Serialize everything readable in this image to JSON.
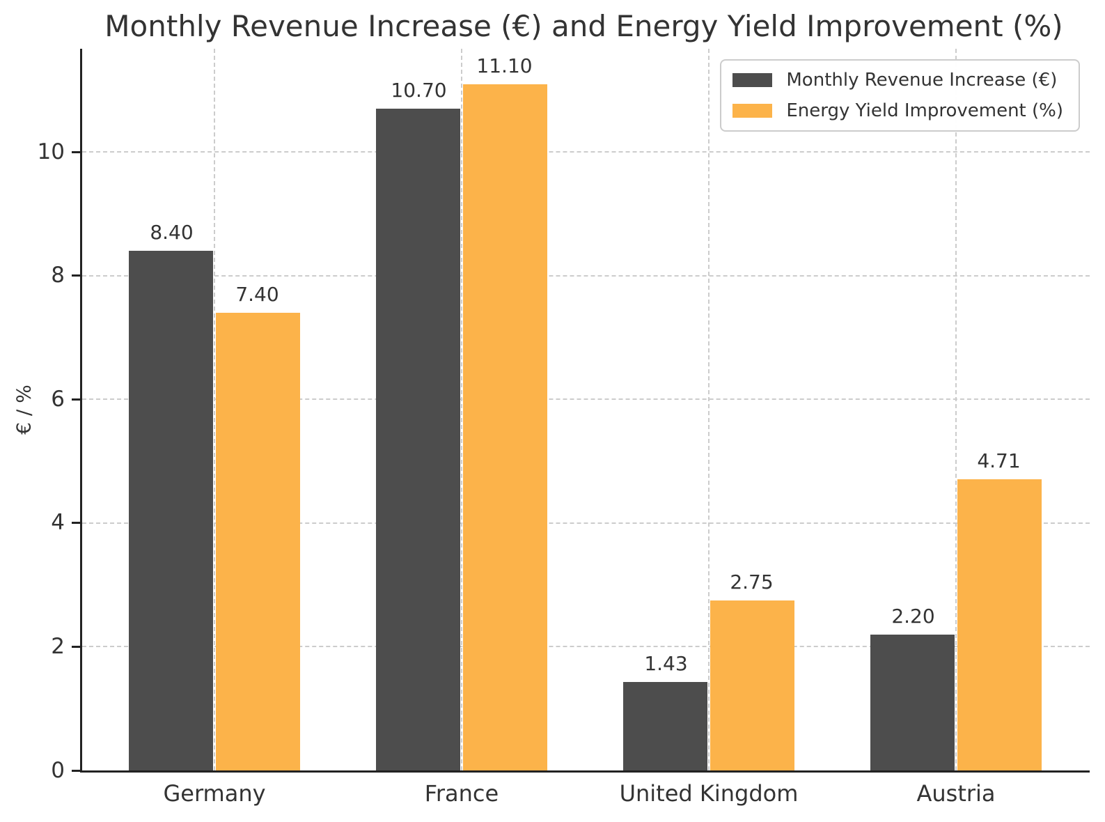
{
  "title": "Monthly Revenue Increase (€) and Energy Yield Improvement (%)",
  "chart_data": {
    "type": "bar",
    "categories": [
      "Germany",
      "France",
      "United Kingdom",
      "Austria"
    ],
    "series": [
      {
        "name": "Monthly Revenue Increase (€)",
        "color": "#4D4D4D",
        "values": [
          8.4,
          10.7,
          1.43,
          2.2
        ],
        "value_labels": [
          "8.40",
          "10.70",
          "1.43",
          "2.20"
        ]
      },
      {
        "name": "Energy Yield Improvement (%)",
        "color": "#FCB34A",
        "values": [
          7.4,
          11.1,
          2.75,
          4.71
        ],
        "value_labels": [
          "7.40",
          "11.10",
          "2.75",
          "4.71"
        ]
      }
    ],
    "xlabel": "",
    "ylabel": "€ / %",
    "yticks": [
      0,
      2,
      4,
      6,
      8,
      10
    ],
    "ytick_labels": [
      "0",
      "2",
      "4",
      "6",
      "8",
      "10"
    ],
    "ylim": [
      0,
      11.67
    ],
    "grid": {
      "visible": true,
      "style": "dashed",
      "color": "#CCCCCC",
      "axes": "both"
    },
    "legend": {
      "position": "upper right",
      "entries": [
        "Monthly Revenue Increase (€)",
        "Energy Yield Improvement (%)"
      ]
    }
  },
  "colors": {
    "background": "#FFFFFF",
    "spine": "#222222",
    "text": "#333333",
    "grid": "#CCCCCC",
    "series1": "#4D4D4D",
    "series2": "#FCB34A"
  }
}
